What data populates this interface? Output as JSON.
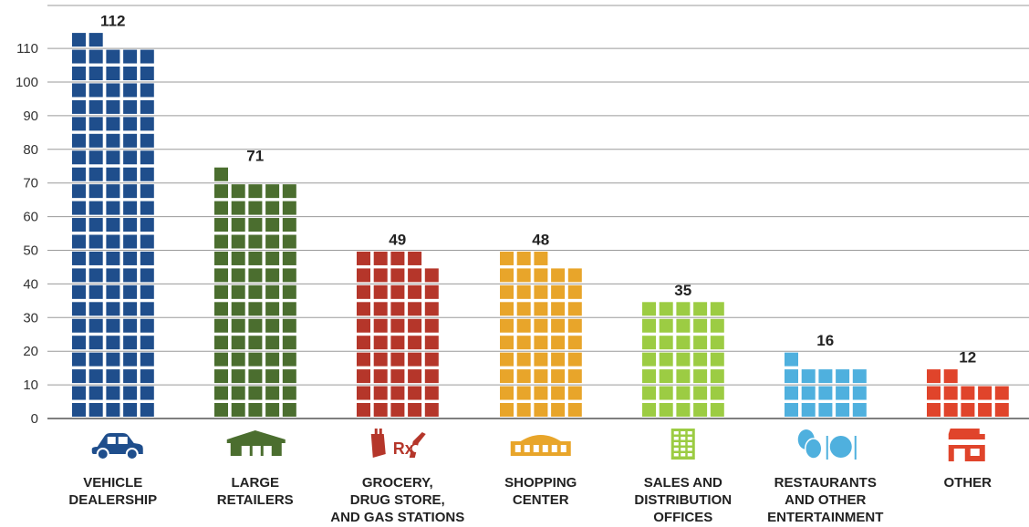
{
  "chart_data": {
    "type": "bar",
    "style": "pictogram stacked unit squares with category icons",
    "ylim": [
      0,
      115
    ],
    "yticks": [
      "0",
      "10",
      "20",
      "30",
      "40",
      "50",
      "60",
      "70",
      "80",
      "90",
      "100",
      "110"
    ],
    "categories": [
      {
        "lines": [
          "VEHICLE",
          "DEALERSHIP"
        ],
        "value": 112,
        "value_label": "112",
        "color": "#1f4e8c",
        "icon": "car-icon"
      },
      {
        "lines": [
          "LARGE",
          "RETAILERS"
        ],
        "value": 71,
        "value_label": "71",
        "color": "#4b6e2f",
        "icon": "warehouse-icon"
      },
      {
        "lines": [
          "GROCERY,",
          "DRUG STORE,",
          "AND GAS STATIONS"
        ],
        "value": 49,
        "value_label": "49",
        "color": "#b5362a",
        "icon": "grocery-pharmacy-fuel-icon"
      },
      {
        "lines": [
          "SHOPPING",
          "CENTER"
        ],
        "value": 48,
        "value_label": "48",
        "color": "#e8a52a",
        "icon": "shopping-mall-icon"
      },
      {
        "lines": [
          "SALES AND",
          "DISTRIBUTION",
          "OFFICES"
        ],
        "value": 35,
        "value_label": "35",
        "color": "#9ccc43",
        "icon": "office-building-icon"
      },
      {
        "lines": [
          "RESTAURANTS",
          "AND OTHER",
          "ENTERTAINMENT"
        ],
        "value": 16,
        "value_label": "16",
        "color": "#4fb0de",
        "icon": "theater-masks-dining-icon"
      },
      {
        "lines": [
          "OTHER"
        ],
        "value": 12,
        "value_label": "12",
        "color": "#e0442b",
        "icon": "storefront-icon"
      }
    ]
  }
}
